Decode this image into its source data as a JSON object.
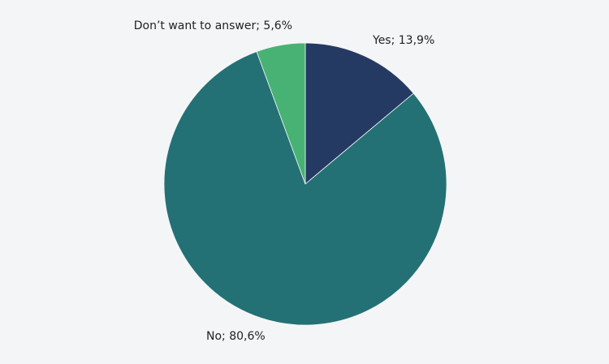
{
  "chart_data": {
    "type": "pie",
    "values": [
      13.9,
      80.6,
      5.6
    ],
    "value_labels": [
      "Yes; 13,9%",
      "No; 80,6%",
      "Don’t want to answer; 5,6%"
    ],
    "colors": [
      "#253a63",
      "#237174",
      "#48b275"
    ]
  }
}
